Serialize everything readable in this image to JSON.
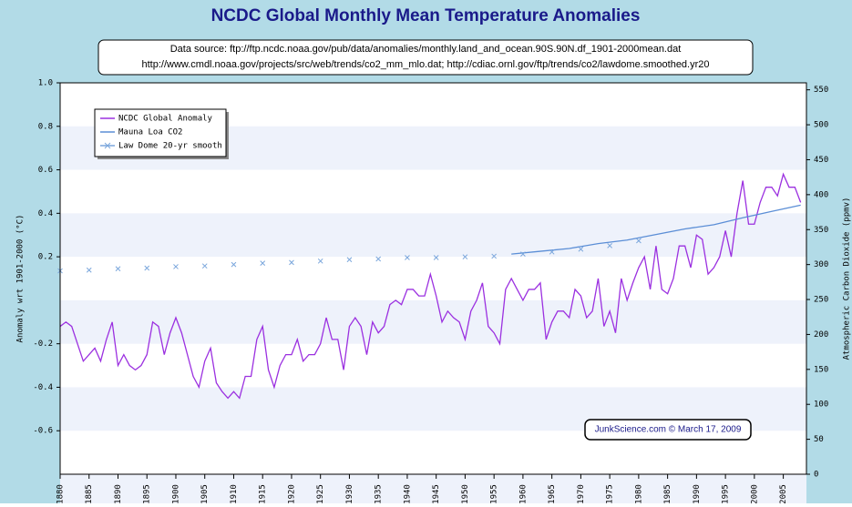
{
  "chart_data": {
    "type": "line",
    "title": "NCDC Global Monthly Mean Temperature Anomalies",
    "subtitle": [
      "Data source: ftp://ftp.ncdc.noaa.gov/pub/data/anomalies/monthly.land_and_ocean.90S.90N.df_1901-2000mean.dat",
      "http://www.cmdl.noaa.gov/projects/src/web/trends/co2_mm_mlo.dat; http://cdiac.ornl.gov/ftp/trends/co2/lawdome.smoothed.yr20"
    ],
    "annotation": "JunkScience.com © March 17, 2009",
    "ylabel": "Anomaly wrt 1901-2000 (°C)",
    "y2label": "Atmospheric Carbon Dioxide (ppmv)",
    "xlim": [
      1880,
      2009
    ],
    "xticks": [
      1880,
      1885,
      1890,
      1895,
      1900,
      1905,
      1910,
      1915,
      1920,
      1925,
      1930,
      1935,
      1940,
      1945,
      1950,
      1955,
      1960,
      1965,
      1970,
      1975,
      1980,
      1985,
      1990,
      1995,
      2000,
      2005
    ],
    "ylim": [
      -0.8,
      1.0
    ],
    "yticks": [
      {
        "value": 1.0,
        "label": "1.0"
      },
      0.8,
      0.6,
      0.4,
      0.2,
      -0.2,
      -0.4,
      -0.6
    ],
    "y2lim": [
      0,
      560
    ],
    "y2ticks": [
      0,
      50,
      100,
      150,
      200,
      250,
      300,
      350,
      400,
      450,
      500,
      550
    ],
    "grid": true,
    "legend": "upper left",
    "series": [
      {
        "name": "NCDC Global Anomaly",
        "color": "#9b30e0",
        "x": [
          1880,
          1881,
          1882,
          1883,
          1884,
          1885,
          1886,
          1887,
          1888,
          1889,
          1890,
          1891,
          1892,
          1893,
          1894,
          1895,
          1896,
          1897,
          1898,
          1899,
          1900,
          1901,
          1902,
          1903,
          1904,
          1905,
          1906,
          1907,
          1908,
          1909,
          1910,
          1911,
          1912,
          1913,
          1914,
          1915,
          1916,
          1917,
          1918,
          1919,
          1920,
          1921,
          1922,
          1923,
          1924,
          1925,
          1926,
          1927,
          1928,
          1929,
          1930,
          1931,
          1932,
          1933,
          1934,
          1935,
          1936,
          1937,
          1938,
          1939,
          1940,
          1941,
          1942,
          1943,
          1944,
          1945,
          1946,
          1947,
          1948,
          1949,
          1950,
          1951,
          1952,
          1953,
          1954,
          1955,
          1956,
          1957,
          1958,
          1959,
          1960,
          1961,
          1962,
          1963,
          1964,
          1965,
          1966,
          1967,
          1968,
          1969,
          1970,
          1971,
          1972,
          1973,
          1974,
          1975,
          1976,
          1977,
          1978,
          1979,
          1980,
          1981,
          1982,
          1983,
          1984,
          1985,
          1986,
          1987,
          1988,
          1989,
          1990,
          1991,
          1992,
          1993,
          1994,
          1995,
          1996,
          1997,
          1998,
          1999,
          2000,
          2001,
          2002,
          2003,
          2004,
          2005,
          2006,
          2007,
          2008
        ],
        "values": [
          -0.12,
          -0.1,
          -0.12,
          -0.2,
          -0.28,
          -0.25,
          -0.22,
          -0.28,
          -0.18,
          -0.1,
          -0.3,
          -0.25,
          -0.3,
          -0.32,
          -0.3,
          -0.25,
          -0.1,
          -0.12,
          -0.25,
          -0.15,
          -0.08,
          -0.15,
          -0.25,
          -0.35,
          -0.4,
          -0.28,
          -0.22,
          -0.38,
          -0.42,
          -0.45,
          -0.42,
          -0.45,
          -0.35,
          -0.35,
          -0.18,
          -0.12,
          -0.32,
          -0.4,
          -0.3,
          -0.25,
          -0.25,
          -0.18,
          -0.28,
          -0.25,
          -0.25,
          -0.2,
          -0.08,
          -0.18,
          -0.18,
          -0.32,
          -0.12,
          -0.08,
          -0.12,
          -0.25,
          -0.1,
          -0.15,
          -0.12,
          -0.02,
          0.0,
          -0.02,
          0.05,
          0.05,
          0.02,
          0.02,
          0.12,
          0.02,
          -0.1,
          -0.05,
          -0.08,
          -0.1,
          -0.18,
          -0.05,
          0.0,
          0.08,
          -0.12,
          -0.15,
          -0.2,
          0.05,
          0.1,
          0.05,
          0.0,
          0.05,
          0.05,
          0.08,
          -0.18,
          -0.1,
          -0.05,
          -0.05,
          -0.08,
          0.05,
          0.02,
          -0.08,
          -0.05,
          0.1,
          -0.12,
          -0.05,
          -0.15,
          0.1,
          0.0,
          0.08,
          0.15,
          0.2,
          0.05,
          0.25,
          0.05,
          0.03,
          0.1,
          0.25,
          0.25,
          0.15,
          0.3,
          0.28,
          0.12,
          0.15,
          0.2,
          0.32,
          0.2,
          0.4,
          0.55,
          0.35,
          0.35,
          0.45,
          0.52,
          0.52,
          0.48,
          0.58,
          0.52,
          0.52,
          0.45
        ]
      },
      {
        "name": "Mauna Loa CO2",
        "color": "#5b8ed6",
        "axis": "y2",
        "x": [
          1958,
          1963,
          1968,
          1973,
          1978,
          1983,
          1988,
          1993,
          1998,
          2003,
          2008
        ],
        "values": [
          315,
          319,
          323,
          330,
          335,
          343,
          351,
          357,
          367,
          376,
          385
        ]
      },
      {
        "name": "Law Dome 20-yr smooth",
        "color": "#7aa6dc",
        "axis": "y2",
        "marker": "x",
        "x": [
          1880,
          1885,
          1890,
          1895,
          1900,
          1905,
          1910,
          1915,
          1920,
          1925,
          1930,
          1935,
          1940,
          1945,
          1950,
          1955,
          1960,
          1965,
          1970,
          1975,
          1980
        ],
        "values": [
          291,
          292,
          294,
          295,
          297,
          298,
          300,
          302,
          303,
          305,
          307,
          308,
          310,
          310,
          311,
          312,
          315,
          318,
          322,
          327,
          334
        ]
      }
    ]
  }
}
